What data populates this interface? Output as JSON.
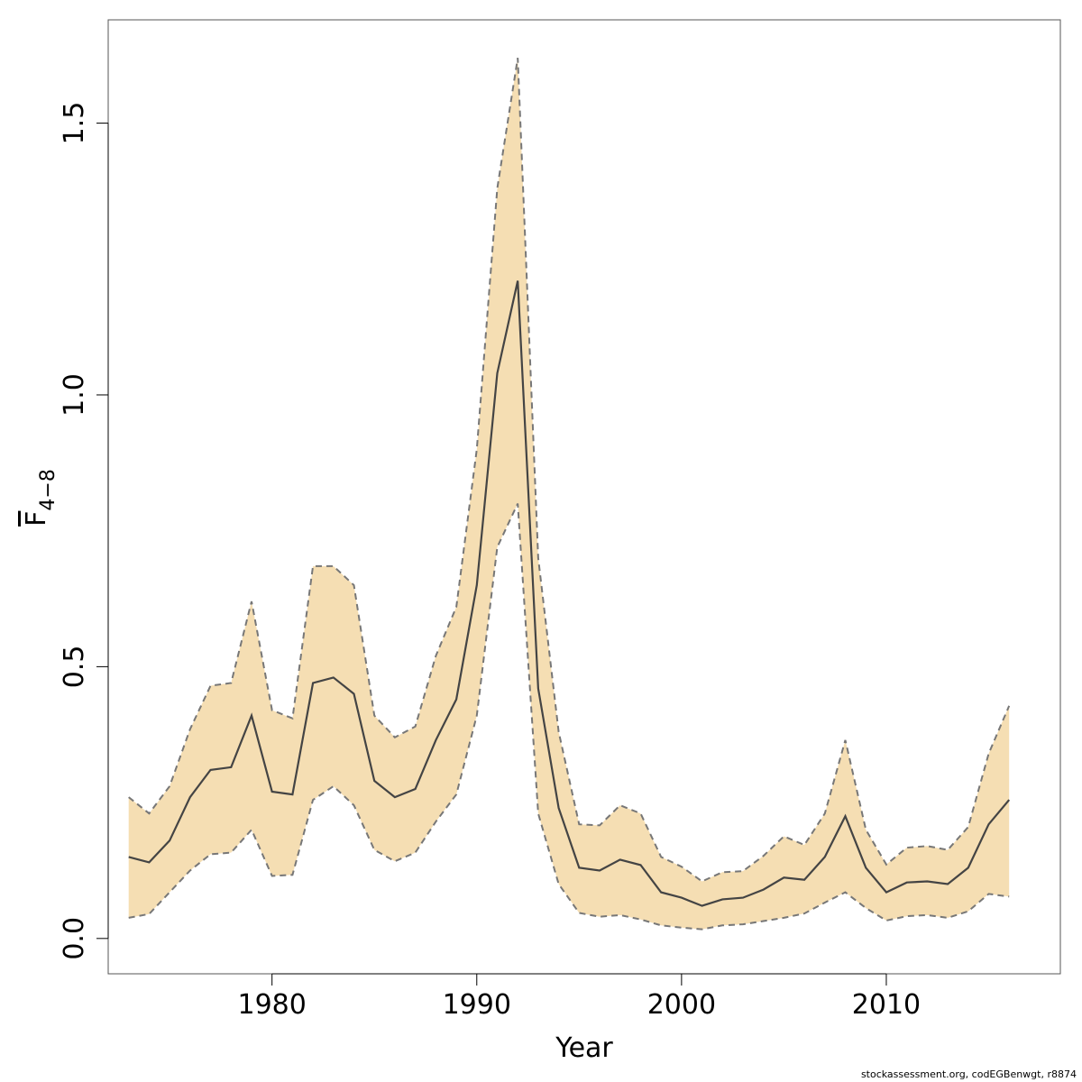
{
  "chart_data": {
    "type": "area",
    "xlabel": "Year",
    "ylabel_base": "F",
    "ylabel_sub": "4−8",
    "xlim": [
      1972,
      2018.5
    ],
    "ylim": [
      -0.065,
      1.69
    ],
    "xticks": [
      1980,
      1990,
      2000,
      2010
    ],
    "xtick_labels": [
      "1980",
      "1990",
      "2000",
      "2010"
    ],
    "yticks": [
      0.0,
      0.5,
      1.0,
      1.5
    ],
    "ytick_labels": [
      "0.0",
      "0.5",
      "1.0",
      "1.5"
    ],
    "grid": false,
    "colors": {
      "band": "#f5deb3",
      "line": "#444444",
      "bound": "#777777",
      "frame": "#555555"
    },
    "x": [
      1973,
      1974,
      1975,
      1976,
      1977,
      1978,
      1979,
      1980,
      1981,
      1982,
      1983,
      1984,
      1985,
      1986,
      1987,
      1988,
      1989,
      1990,
      1991,
      1992,
      1993,
      1994,
      1995,
      1996,
      1997,
      1998,
      1999,
      2000,
      2001,
      2002,
      2003,
      2004,
      2005,
      2006,
      2007,
      2008,
      2009,
      2010,
      2011,
      2012,
      2013,
      2014,
      2015,
      2016
    ],
    "series": [
      {
        "role": "estimate",
        "values": [
          0.15,
          0.14,
          0.18,
          0.26,
          0.31,
          0.315,
          0.41,
          0.27,
          0.265,
          0.47,
          0.48,
          0.45,
          0.29,
          0.26,
          0.275,
          0.365,
          0.44,
          0.65,
          1.04,
          1.21,
          0.46,
          0.24,
          0.13,
          0.125,
          0.145,
          0.135,
          0.085,
          0.075,
          0.06,
          0.072,
          0.075,
          0.09,
          0.112,
          0.108,
          0.15,
          0.225,
          0.13,
          0.085,
          0.103,
          0.105,
          0.1,
          0.13,
          0.21,
          0.255
        ]
      },
      {
        "role": "upper",
        "values": [
          0.26,
          0.23,
          0.28,
          0.385,
          0.465,
          0.47,
          0.62,
          0.42,
          0.405,
          0.685,
          0.685,
          0.65,
          0.41,
          0.37,
          0.39,
          0.52,
          0.61,
          0.9,
          1.38,
          1.62,
          0.7,
          0.38,
          0.21,
          0.208,
          0.245,
          0.23,
          0.15,
          0.132,
          0.105,
          0.122,
          0.124,
          0.152,
          0.188,
          0.172,
          0.23,
          0.365,
          0.2,
          0.136,
          0.167,
          0.17,
          0.163,
          0.205,
          0.34,
          0.428
        ]
      },
      {
        "role": "lower",
        "values": [
          0.038,
          0.045,
          0.085,
          0.125,
          0.155,
          0.158,
          0.2,
          0.115,
          0.117,
          0.255,
          0.28,
          0.245,
          0.163,
          0.142,
          0.158,
          0.215,
          0.265,
          0.41,
          0.72,
          0.8,
          0.23,
          0.1,
          0.047,
          0.04,
          0.043,
          0.035,
          0.024,
          0.02,
          0.017,
          0.024,
          0.026,
          0.032,
          0.038,
          0.046,
          0.066,
          0.085,
          0.056,
          0.033,
          0.041,
          0.043,
          0.038,
          0.05,
          0.082,
          0.077
        ]
      }
    ]
  },
  "footer": {
    "note": "stockassessment.org, codEGBenwgt, r8874"
  }
}
